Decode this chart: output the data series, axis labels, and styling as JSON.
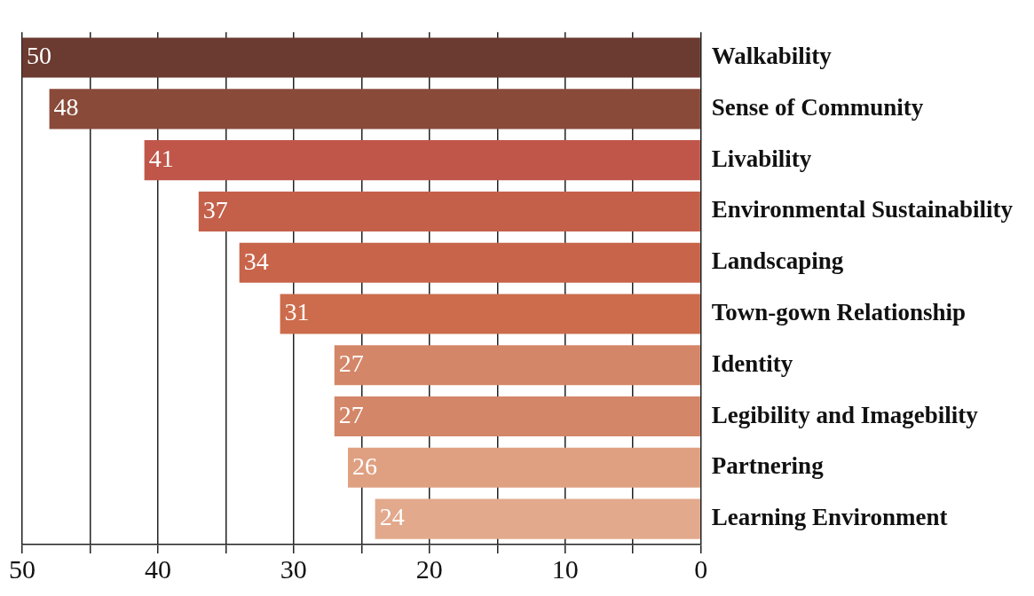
{
  "chart_data": {
    "type": "bar",
    "orientation": "horizontal",
    "categories": [
      "Walkability",
      "Sense of Community",
      "Livability",
      "Environmental Sustainability",
      "Landscaping",
      "Town-gown Relationship",
      "Identity",
      "Legibility and Imagebility",
      "Partnering",
      "Learning Environment"
    ],
    "values": [
      50,
      48,
      41,
      37,
      34,
      31,
      27,
      27,
      26,
      24
    ],
    "colors": [
      "#6b3a30",
      "#8a4a3a",
      "#c0564a",
      "#c4604a",
      "#c8644a",
      "#cc6c4c",
      "#d48668",
      "#d48668",
      "#dfa082",
      "#e2a98c"
    ],
    "xlim": [
      50,
      0
    ],
    "xticks": [
      50,
      {
        "value": 45,
        "label": null
      },
      40,
      {
        "value": 35,
        "label": null
      },
      30,
      {
        "value": 25,
        "label": null
      },
      20,
      {
        "value": 15,
        "label": null
      },
      10,
      {
        "value": 5,
        "label": null
      },
      0
    ],
    "grid": "x",
    "data_labels": true,
    "legend": false
  }
}
